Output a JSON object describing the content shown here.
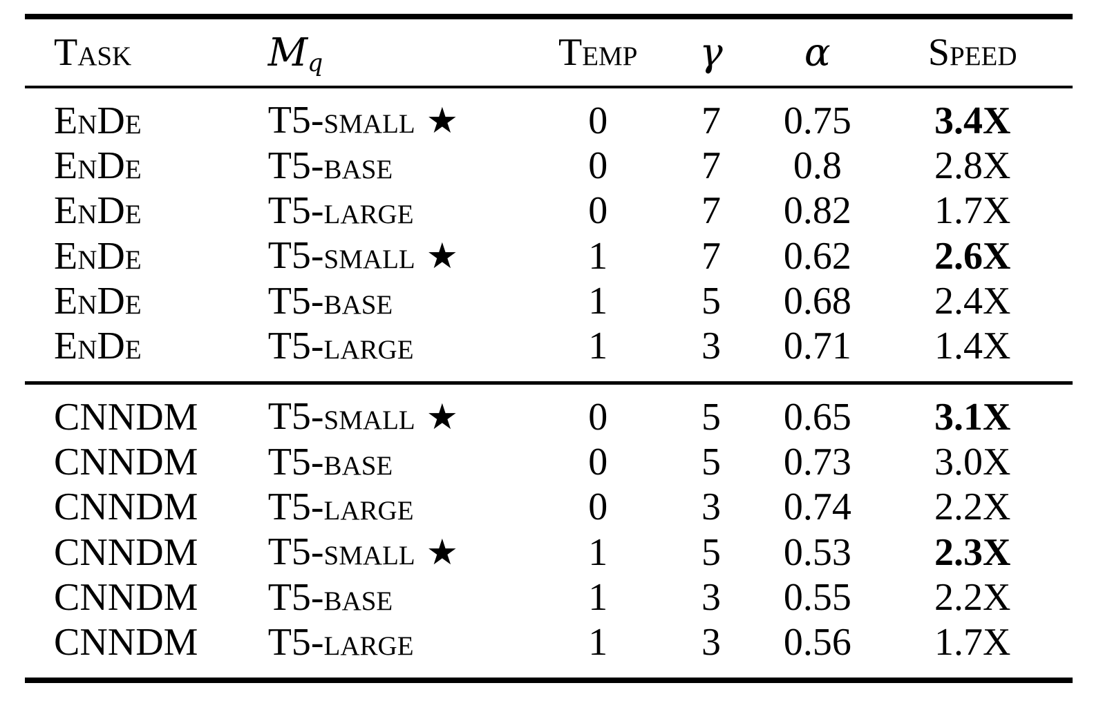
{
  "table": {
    "headers": {
      "task": "Task",
      "model_base": "M",
      "model_sub": "q",
      "temp": "Temp",
      "gamma": "γ",
      "alpha": "α",
      "speed": "Speed"
    },
    "star_icon": "★",
    "text_color": "#000000",
    "background_color": "#ffffff",
    "sections": [
      {
        "name": "EnDe",
        "rows": [
          {
            "task": "EnDe",
            "model": "T5-small",
            "star": true,
            "temp": "0",
            "gamma": "7",
            "alpha": "0.75",
            "speed": "3.4X",
            "speed_bold": true
          },
          {
            "task": "EnDe",
            "model": "T5-base",
            "star": false,
            "temp": "0",
            "gamma": "7",
            "alpha": "0.8",
            "speed": "2.8X",
            "speed_bold": false
          },
          {
            "task": "EnDe",
            "model": "T5-large",
            "star": false,
            "temp": "0",
            "gamma": "7",
            "alpha": "0.82",
            "speed": "1.7X",
            "speed_bold": false
          },
          {
            "task": "EnDe",
            "model": "T5-small",
            "star": true,
            "temp": "1",
            "gamma": "7",
            "alpha": "0.62",
            "speed": "2.6X",
            "speed_bold": true
          },
          {
            "task": "EnDe",
            "model": "T5-base",
            "star": false,
            "temp": "1",
            "gamma": "5",
            "alpha": "0.68",
            "speed": "2.4X",
            "speed_bold": false
          },
          {
            "task": "EnDe",
            "model": "T5-large",
            "star": false,
            "temp": "1",
            "gamma": "3",
            "alpha": "0.71",
            "speed": "1.4X",
            "speed_bold": false
          }
        ]
      },
      {
        "name": "CNNDM",
        "rows": [
          {
            "task": "CNNDM",
            "model": "T5-small",
            "star": true,
            "temp": "0",
            "gamma": "5",
            "alpha": "0.65",
            "speed": "3.1X",
            "speed_bold": true
          },
          {
            "task": "CNNDM",
            "model": "T5-base",
            "star": false,
            "temp": "0",
            "gamma": "5",
            "alpha": "0.73",
            "speed": "3.0X",
            "speed_bold": false
          },
          {
            "task": "CNNDM",
            "model": "T5-large",
            "star": false,
            "temp": "0",
            "gamma": "3",
            "alpha": "0.74",
            "speed": "2.2X",
            "speed_bold": false
          },
          {
            "task": "CNNDM",
            "model": "T5-small",
            "star": true,
            "temp": "1",
            "gamma": "5",
            "alpha": "0.53",
            "speed": "2.3X",
            "speed_bold": true
          },
          {
            "task": "CNNDM",
            "model": "T5-base",
            "star": false,
            "temp": "1",
            "gamma": "3",
            "alpha": "0.55",
            "speed": "2.2X",
            "speed_bold": false
          },
          {
            "task": "CNNDM",
            "model": "T5-large",
            "star": false,
            "temp": "1",
            "gamma": "3",
            "alpha": "0.56",
            "speed": "1.7X",
            "speed_bold": false
          }
        ]
      }
    ]
  }
}
